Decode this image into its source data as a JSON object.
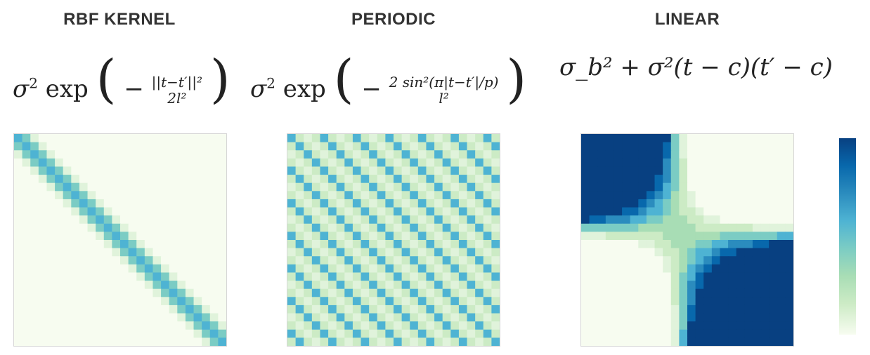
{
  "panels": [
    {
      "title": "RBF KERNEL",
      "kernel": "rbf"
    },
    {
      "title": "PERIODIC",
      "kernel": "periodic"
    },
    {
      "title": "LINEAR",
      "kernel": "linear"
    }
  ],
  "formulas": {
    "rbf": {
      "prefix": "σ",
      "sq": "2",
      "fn": " exp",
      "num": "||t−t′||²",
      "den": "2l²"
    },
    "periodic": {
      "prefix": "σ",
      "sq": "2",
      "fn": " exp",
      "num": "2 sin²(π|t−t′|/p)",
      "den": "l²"
    },
    "linear": {
      "text": "σ_b² + σ²(t − c)(t′ − c)"
    }
  },
  "colormap": [
    "#f7fcf0",
    "#e0f3db",
    "#ccebc5",
    "#a8ddb5",
    "#7bccc4",
    "#4eb3d3",
    "#2b8cbe",
    "#0868ac",
    "#084081"
  ],
  "grid_size": 26
}
